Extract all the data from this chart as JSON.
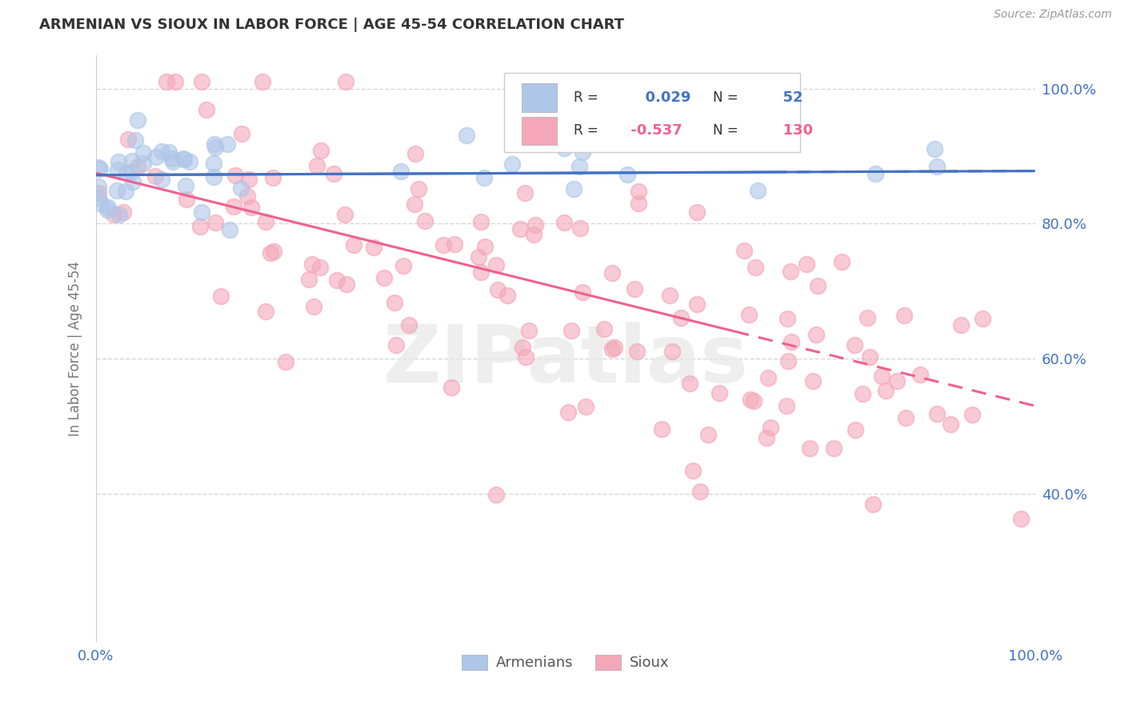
{
  "title": "ARMENIAN VS SIOUX IN LABOR FORCE | AGE 45-54 CORRELATION CHART",
  "source": "Source: ZipAtlas.com",
  "ylabel": "In Labor Force | Age 45-54",
  "xlim": [
    0.0,
    1.0
  ],
  "ylim": [
    0.18,
    1.05
  ],
  "armenian_R": 0.029,
  "armenian_N": 52,
  "sioux_R": -0.537,
  "sioux_N": 130,
  "armenian_color": "#aec6e8",
  "sioux_color": "#f4a7b9",
  "armenian_line_color": "#4472c4",
  "sioux_line_color": "#f06090",
  "background_color": "#ffffff",
  "grid_color": "#cccccc",
  "yticks": [
    0.4,
    0.6,
    0.8,
    1.0
  ],
  "ytick_labels": [
    "40.0%",
    "60.0%",
    "80.0%",
    "100.0%"
  ],
  "xticks": [
    0.0,
    1.0
  ],
  "xtick_labels": [
    "0.0%",
    "100.0%"
  ],
  "arm_line_x0": 0.0,
  "arm_line_x1": 1.0,
  "arm_line_y0": 0.872,
  "arm_line_y1": 0.878,
  "sioux_line_x0": 0.0,
  "sioux_line_x1": 1.0,
  "sioux_line_y0": 0.875,
  "sioux_line_y1": 0.53,
  "watermark_text": "ZIPatlas",
  "legend_arm_label": "Armenians",
  "legend_sioux_label": "Sioux"
}
